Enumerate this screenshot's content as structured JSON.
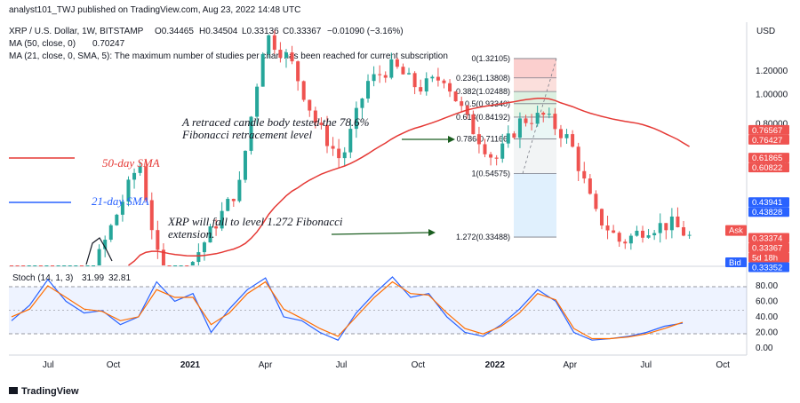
{
  "header": {
    "published_by": "analyst101_TWJ published on TradingView.com, Aug 23, 2022 14:48 UTC",
    "symbol": "XRP / U.S. Dollar, 1W, BITSTAMP",
    "o": "O0.34465",
    "h": "H0.34504",
    "l": "L0.33136",
    "c": "C0.33367",
    "change": "−0.01090 (−3.16%)",
    "ma50": "MA (50, close, 0)",
    "ma50_value": "0.70247",
    "ma21": "MA (21, close, 0, SMA, 5): The maximum number of studies per chart has been reached for current subscription"
  },
  "currency": "USD",
  "annotations": {
    "retrace_line1": "A retraced candle body tested the 78.6%",
    "retrace_line2": "Fibonacci retracement level",
    "sma50": "50-day SMA",
    "sma21": "21-day SMA",
    "fall_line1": "XRP will fall to level 1.272 Fibonacci",
    "fall_line2": "extension."
  },
  "fib_levels": [
    {
      "label": "0(1.32105)",
      "price": 1.32105
    },
    {
      "label": "0.236(1.13808)",
      "price": 1.13808
    },
    {
      "label": "0.382(1.02488)",
      "price": 1.02488
    },
    {
      "label": "0.5(0.93340)",
      "price": 0.9334
    },
    {
      "label": "0.618(0.84192)",
      "price": 0.84192
    },
    {
      "label": "0.786(0.71166)",
      "price": 0.71166
    },
    {
      "label": "1(0.54575)",
      "price": 0.54575
    },
    {
      "label": "1.272(0.33488)",
      "price": 0.33488
    }
  ],
  "price_tags": [
    {
      "label": "0.76567",
      "color": "#ef5350",
      "price": 0.76567
    },
    {
      "label": "0.76427",
      "color": "#ef5350",
      "price": 0.76427
    },
    {
      "label": "0.61865",
      "color": "#ef5350",
      "price": 0.61865
    },
    {
      "label": "0.60822",
      "color": "#ef5350",
      "price": 0.60822
    },
    {
      "label": "0.43941",
      "color": "#2962ff",
      "price": 0.43941
    },
    {
      "label": "0.43828",
      "color": "#2962ff",
      "price": 0.43828
    },
    {
      "label": "0.33374",
      "color": "#ef5350",
      "price": 0.33374
    },
    {
      "label": "0.33367",
      "color": "#ef5350",
      "price": 0.33367
    },
    {
      "label": "5d 18h",
      "color": "#ef5350",
      "price": 0.33367
    },
    {
      "label": "0.33352",
      "color": "#2962ff",
      "price": 0.33352
    }
  ],
  "ask_label": "Ask",
  "bid_label": "Bid",
  "stoch": {
    "title": "Stoch (14, 1, 3)",
    "k_value": "31.99",
    "d_value": "32.81",
    "k_color": "#2962ff",
    "d_color": "#ff6d00",
    "ticks": [
      "80.00",
      "60.00",
      "40.00",
      "20.00",
      "0.00"
    ]
  },
  "brand": "TradingView",
  "chart_data": [
    {
      "type": "line",
      "title": "XRP / U.S. Dollar, 1W, BITSTAMP",
      "y_axis": {
        "scale": "log",
        "unit": "USD",
        "ticks": [
          1.2,
          1.0,
          0.8,
          0.6,
          0.4
        ]
      },
      "x_axis": {
        "ticks": [
          "Jul",
          "Oct",
          "2021",
          "Apr",
          "Jul",
          "Oct",
          "2022",
          "Apr",
          "Jul",
          "Oct"
        ]
      },
      "price_path": [
        {
          "x": "2020-06",
          "y": 0.19
        },
        {
          "x": "2020-09",
          "y": 0.24
        },
        {
          "x": "2020-11",
          "y": 0.6
        },
        {
          "x": "2020-12",
          "y": 0.22
        },
        {
          "x": "2021-01",
          "y": 0.27
        },
        {
          "x": "2021-03",
          "y": 0.5
        },
        {
          "x": "2021-04",
          "y": 1.6
        },
        {
          "x": "2021-05",
          "y": 1.3
        },
        {
          "x": "2021-06",
          "y": 0.8
        },
        {
          "x": "2021-07",
          "y": 0.6
        },
        {
          "x": "2021-08",
          "y": 1.1
        },
        {
          "x": "2021-09",
          "y": 1.25
        },
        {
          "x": "2021-10",
          "y": 1.05
        },
        {
          "x": "2021-11",
          "y": 1.15
        },
        {
          "x": "2021-12",
          "y": 0.8
        },
        {
          "x": "2022-01",
          "y": 0.6
        },
        {
          "x": "2022-02",
          "y": 0.82
        },
        {
          "x": "2022-03",
          "y": 0.85
        },
        {
          "x": "2022-04",
          "y": 0.7
        },
        {
          "x": "2022-05",
          "y": 0.4
        },
        {
          "x": "2022-06",
          "y": 0.32
        },
        {
          "x": "2022-07",
          "y": 0.36
        },
        {
          "x": "2022-08",
          "y": 0.37
        },
        {
          "x": "2022-08-23",
          "y": 0.33367
        }
      ]
    },
    {
      "type": "line",
      "title": "Stoch (14, 1, 3)",
      "y_range": [
        0,
        100
      ],
      "series": [
        {
          "name": "%K",
          "values": [
            35,
            55,
            88,
            60,
            45,
            48,
            30,
            40,
            85,
            60,
            70,
            20,
            50,
            75,
            90,
            40,
            35,
            20,
            10,
            45,
            70,
            95,
            65,
            70,
            40,
            20,
            15,
            30,
            50,
            75,
            60,
            20,
            10,
            12,
            15,
            20,
            28,
            32
          ]
        },
        {
          "name": "%D",
          "values": [
            40,
            50,
            80,
            65,
            50,
            47,
            35,
            40,
            75,
            65,
            65,
            30,
            45,
            70,
            85,
            50,
            38,
            25,
            15,
            40,
            65,
            85,
            70,
            68,
            45,
            25,
            18,
            28,
            45,
            70,
            62,
            25,
            12,
            12,
            14,
            18,
            25,
            33
          ]
        }
      ]
    }
  ]
}
